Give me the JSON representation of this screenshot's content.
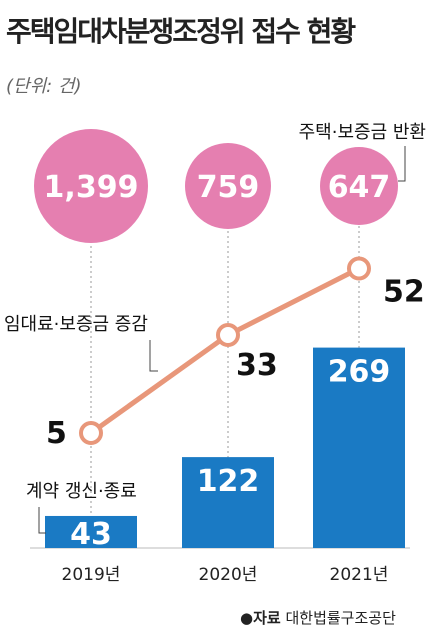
{
  "header": {
    "title": "주택임대차분쟁조정위 접수 현황",
    "unit": "(단위: 건)"
  },
  "source": {
    "lead": "●자료",
    "org": "대한법률구조공단"
  },
  "colors": {
    "circle": "#e57fb0",
    "bar": "#1a7ac4",
    "line": "#e8977a",
    "label_dark": "#111111",
    "label_light": "#ffffff"
  },
  "chart_data": {
    "type": "bar",
    "categories": [
      "2019년",
      "2020년",
      "2021년"
    ],
    "series": [
      {
        "name": "계약 갱신·종료",
        "kind": "bar",
        "values": [
          43,
          122,
          269
        ]
      },
      {
        "name": "임대료·보증금 증감",
        "kind": "line",
        "values": [
          5,
          33,
          52
        ]
      },
      {
        "name": "주택·보증금 반환",
        "kind": "bubble",
        "values": [
          1399,
          759,
          647
        ]
      }
    ],
    "value_labels": {
      "bar": [
        "43",
        "122",
        "269"
      ],
      "line": [
        "5",
        "33",
        "52"
      ],
      "bubble": [
        "1,399",
        "759",
        "647"
      ]
    }
  }
}
